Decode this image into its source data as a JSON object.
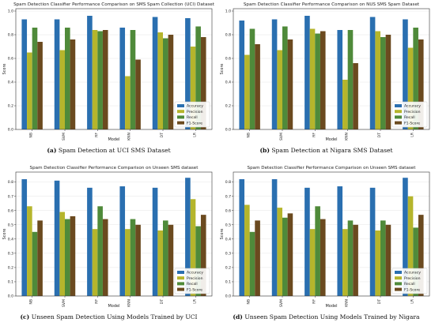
{
  "legend": [
    "Accuracy",
    "Precision",
    "Recall",
    "F1-Score"
  ],
  "colors": {
    "accuracy": "#2a6fb0",
    "precision": "#b5b52c",
    "recall": "#4f8a3a",
    "f1": "#6b4a1f"
  },
  "chart_data": [
    {
      "type": "bar",
      "title": "Spam Detection Classifier Performance Comparison on SMS Spam Collection (UCI) Dataset",
      "xlabel": "Model",
      "ylabel": "Score",
      "categories": [
        "NB",
        "SVM",
        "RF",
        "KNN",
        "DT",
        "LR"
      ],
      "series": [
        {
          "name": "Accuracy",
          "values": [
            0.93,
            0.93,
            0.96,
            0.86,
            0.95,
            0.94
          ]
        },
        {
          "name": "Precision",
          "values": [
            0.65,
            0.67,
            0.84,
            0.45,
            0.82,
            0.7
          ]
        },
        {
          "name": "Recall",
          "values": [
            0.86,
            0.86,
            0.83,
            0.84,
            0.77,
            0.87
          ]
        },
        {
          "name": "F1-Score",
          "values": [
            0.74,
            0.76,
            0.84,
            0.59,
            0.8,
            0.78
          ]
        }
      ],
      "yticks": [
        "0.0",
        "0.2",
        "0.4",
        "0.6",
        "0.8",
        "1.0"
      ],
      "ylim": [
        0,
        1.02
      ],
      "legend_position": "bottom-right",
      "caption_label": "(a)",
      "caption_text": "Spam Detection at UCI SMS Dataset"
    },
    {
      "type": "bar",
      "title": "Spam Detection Classifier Performance Comparison on NUS SMS Spam Dataset",
      "xlabel": "Model",
      "ylabel": "Score",
      "categories": [
        "NB",
        "SVM",
        "RF",
        "KNN",
        "DT",
        "LR"
      ],
      "series": [
        {
          "name": "Accuracy",
          "values": [
            0.92,
            0.93,
            0.96,
            0.84,
            0.95,
            0.93
          ]
        },
        {
          "name": "Precision",
          "values": [
            0.63,
            0.67,
            0.85,
            0.42,
            0.83,
            0.69
          ]
        },
        {
          "name": "Recall",
          "values": [
            0.85,
            0.87,
            0.81,
            0.84,
            0.78,
            0.86
          ]
        },
        {
          "name": "F1-Score",
          "values": [
            0.72,
            0.76,
            0.83,
            0.56,
            0.8,
            0.76
          ]
        }
      ],
      "yticks": [
        "0.0",
        "0.2",
        "0.4",
        "0.6",
        "0.8",
        "1.0"
      ],
      "ylim": [
        0,
        1.02
      ],
      "legend_position": "bottom-right",
      "caption_label": "(b)",
      "caption_text": "Spam Detection at Nigara SMS Dataset"
    },
    {
      "type": "bar",
      "title": "Spam Detection Classifier Performance Comparison on Unseen SMS dataset",
      "xlabel": "Model",
      "ylabel": "Score",
      "categories": [
        "NB",
        "SVM",
        "RF",
        "KNN",
        "DT",
        "LR"
      ],
      "series": [
        {
          "name": "Accuracy",
          "values": [
            0.82,
            0.81,
            0.76,
            0.77,
            0.76,
            0.83
          ]
        },
        {
          "name": "Precision",
          "values": [
            0.63,
            0.59,
            0.47,
            0.47,
            0.46,
            0.68
          ]
        },
        {
          "name": "Recall",
          "values": [
            0.45,
            0.54,
            0.63,
            0.54,
            0.53,
            0.49
          ]
        },
        {
          "name": "F1-Score",
          "values": [
            0.53,
            0.56,
            0.54,
            0.5,
            0.5,
            0.57
          ]
        }
      ],
      "yticks": [
        "0.0",
        "0.1",
        "0.2",
        "0.3",
        "0.4",
        "0.5",
        "0.6",
        "0.7",
        "0.8"
      ],
      "ylim": [
        0,
        0.87
      ],
      "legend_position": "bottom-right",
      "caption_label": "(c)",
      "caption_text": "Unseen Spam Detection Using Models Trained by UCI"
    },
    {
      "type": "bar",
      "title": "Spam Detection Classifier Performance Comparison on Unseen SMS dataset",
      "xlabel": "Model",
      "ylabel": "Score",
      "categories": [
        "NB",
        "SVM",
        "RF",
        "KNN",
        "DT",
        "LR"
      ],
      "series": [
        {
          "name": "Accuracy",
          "values": [
            0.82,
            0.82,
            0.76,
            0.77,
            0.76,
            0.83
          ]
        },
        {
          "name": "Precision",
          "values": [
            0.64,
            0.62,
            0.47,
            0.47,
            0.46,
            0.7
          ]
        },
        {
          "name": "Recall",
          "values": [
            0.45,
            0.55,
            0.63,
            0.53,
            0.53,
            0.48
          ]
        },
        {
          "name": "F1-Score",
          "values": [
            0.53,
            0.58,
            0.54,
            0.5,
            0.5,
            0.57
          ]
        }
      ],
      "yticks": [
        "0.0",
        "0.1",
        "0.2",
        "0.3",
        "0.4",
        "0.5",
        "0.6",
        "0.7",
        "0.8"
      ],
      "ylim": [
        0,
        0.87
      ],
      "legend_position": "bottom-right",
      "caption_label": "(d)",
      "caption_text": "Unseen Spam Detection Using Models Trained by Nigara"
    }
  ]
}
